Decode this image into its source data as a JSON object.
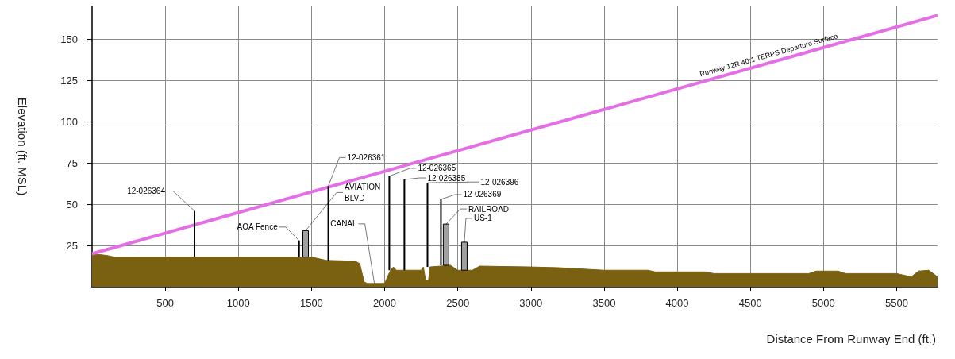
{
  "chart_data": {
    "type": "line",
    "xlabel": "Distance From Runway End (ft.)",
    "ylabel": "Elevation (ft. MSL)",
    "xlim": [
      0,
      5780
    ],
    "ylim": [
      0,
      170
    ],
    "xticks": [
      500,
      1000,
      1500,
      2000,
      2500,
      3000,
      3500,
      4000,
      4500,
      5000,
      5500
    ],
    "yticks": [
      25,
      50,
      75,
      100,
      125,
      150
    ],
    "grid": true,
    "marker": "none",
    "series": [
      {
        "type": "area",
        "color": "#7a6112",
        "x": [
          0,
          100,
          150,
          1400,
          1500,
          1600,
          1800,
          1830,
          1860,
          1880,
          2000,
          2040,
          2060,
          2080,
          2250,
          2265,
          2280,
          2300,
          2310,
          2450,
          2500,
          2600,
          2650,
          3000,
          3200,
          3500,
          3800,
          3850,
          4200,
          4250,
          4900,
          4950,
          5100,
          5150,
          5500,
          5600,
          5650,
          5720,
          5780
        ],
        "values": [
          20,
          19,
          18,
          18,
          18,
          16,
          15.5,
          14,
          3,
          2,
          2,
          10,
          12,
          10,
          10,
          12,
          4,
          4,
          12,
          13,
          10,
          10,
          12.5,
          12,
          11.5,
          10,
          10,
          9,
          9,
          8,
          8,
          9.5,
          9.5,
          8,
          8,
          6,
          9.5,
          10,
          6
        ]
      },
      {
        "name": "Runway 12R 40:1 TERPS Departure Surface",
        "color": "#e46ee6",
        "x": [
          0,
          5780
        ],
        "values": [
          20,
          164.5
        ]
      },
      {
        "type": "bar",
        "color": "#000000",
        "x": [
          700,
          1415,
          1615,
          2032,
          2135,
          2293,
          2385
        ],
        "base": [
          18,
          18,
          16,
          10,
          10,
          12,
          13
        ],
        "values": [
          28,
          10,
          45,
          57,
          55,
          51,
          40
        ]
      },
      {
        "type": "bar",
        "color": "#a0a0a0",
        "x": [
          1460,
          2420,
          2545
        ],
        "base": [
          18,
          13,
          10
        ],
        "values": [
          16,
          25,
          17
        ]
      }
    ],
    "annotations": [
      {
        "text": "12-026364",
        "x": 700,
        "y": 46
      },
      {
        "text": "12-026361",
        "x": 1615,
        "y": 61
      },
      {
        "text": "AOA Fence",
        "x": 1415,
        "y": 28
      },
      {
        "text": "AVIATION\nBLVD",
        "x": 1460,
        "y": 34
      },
      {
        "text": "12-026365",
        "x": 2032,
        "y": 67
      },
      {
        "text": "12-026385",
        "x": 2135,
        "y": 65
      },
      {
        "text": "12-026396",
        "x": 2293,
        "y": 63
      },
      {
        "text": "12-026369",
        "x": 2385,
        "y": 53
      },
      {
        "text": "RAILROAD",
        "x": 2420,
        "y": 38
      },
      {
        "text": "US-1",
        "x": 2545,
        "y": 27
      },
      {
        "text": "CANAL",
        "x": 1930,
        "y": 2
      }
    ]
  }
}
